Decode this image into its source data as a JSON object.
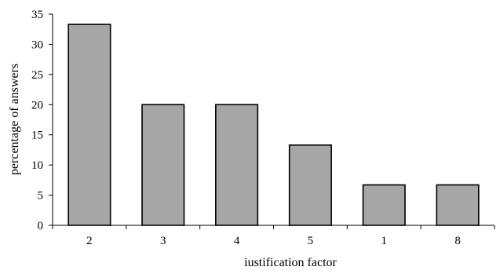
{
  "chart_data": {
    "type": "bar",
    "categories": [
      "2",
      "3",
      "4",
      "5",
      "1",
      "8"
    ],
    "values": [
      33.3,
      20,
      20,
      13.3,
      6.7,
      6.7
    ],
    "title": "",
    "xlabel": "iustification factor",
    "ylabel": "percentage of answers",
    "ylim": [
      0,
      35
    ],
    "yticks": [
      "0",
      "5",
      "10",
      "15",
      "20",
      "25",
      "30",
      "35"
    ],
    "grid": false,
    "legend": "none",
    "bar_color": "#a6a6a6",
    "bar_edge_color": "#000000"
  }
}
